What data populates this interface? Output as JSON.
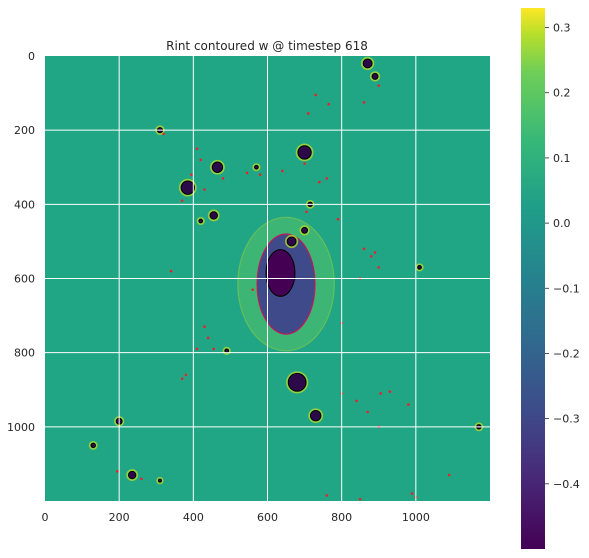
{
  "chart_data": {
    "type": "heatmap",
    "title": "Rint contoured w @ timestep 618",
    "xlabel": "",
    "ylabel": "",
    "xlim": [
      0,
      1200
    ],
    "ylim": [
      1200,
      0
    ],
    "x_ticks": [
      0,
      200,
      400,
      600,
      800,
      1000
    ],
    "x_tick_labels": [
      "0",
      "200",
      "400",
      "600",
      "800",
      "1000"
    ],
    "y_ticks": [
      0,
      200,
      400,
      600,
      800,
      1000
    ],
    "y_tick_labels": [
      "0",
      "200",
      "400",
      "600",
      "800",
      "1000"
    ],
    "grid": true,
    "colormap": "viridis",
    "background_color": "#21a685",
    "colorbar": {
      "range": [
        -0.5,
        0.33
      ],
      "ticks": [
        0.3,
        0.2,
        0.1,
        0.0,
        -0.1,
        -0.2,
        -0.3,
        -0.4
      ],
      "tick_labels": [
        "0.3",
        "0.2",
        "0.1",
        "0.0",
        "−0.1",
        "−0.2",
        "−0.3",
        "−0.4"
      ]
    },
    "blobs": [
      {
        "x": 870,
        "y": 20,
        "r": 12
      },
      {
        "x": 890,
        "y": 55,
        "r": 8
      },
      {
        "x": 310,
        "y": 200,
        "r": 7
      },
      {
        "x": 385,
        "y": 355,
        "r": 18
      },
      {
        "x": 465,
        "y": 300,
        "r": 14
      },
      {
        "x": 455,
        "y": 430,
        "r": 10
      },
      {
        "x": 420,
        "y": 445,
        "r": 5
      },
      {
        "x": 570,
        "y": 300,
        "r": 5
      },
      {
        "x": 700,
        "y": 260,
        "r": 18
      },
      {
        "x": 700,
        "y": 470,
        "r": 8
      },
      {
        "x": 665,
        "y": 500,
        "r": 12
      },
      {
        "x": 715,
        "y": 400,
        "r": 6
      },
      {
        "x": 490,
        "y": 795,
        "r": 5
      },
      {
        "x": 680,
        "y": 880,
        "r": 24
      },
      {
        "x": 730,
        "y": 970,
        "r": 14
      },
      {
        "x": 200,
        "y": 985,
        "r": 8
      },
      {
        "x": 130,
        "y": 1050,
        "r": 6
      },
      {
        "x": 235,
        "y": 1130,
        "r": 10
      },
      {
        "x": 1010,
        "y": 570,
        "r": 5
      },
      {
        "x": 1170,
        "y": 1000,
        "r": 6
      },
      {
        "x": 310,
        "y": 1145,
        "r": 4
      }
    ],
    "central_cluster": {
      "x": 650,
      "y": 615,
      "rx": 130,
      "ry": 180
    },
    "red_points": [
      [
        320,
        210
      ],
      [
        410,
        250
      ],
      [
        420,
        280
      ],
      [
        395,
        320
      ],
      [
        370,
        390
      ],
      [
        430,
        360
      ],
      [
        480,
        330
      ],
      [
        545,
        315
      ],
      [
        580,
        320
      ],
      [
        700,
        290
      ],
      [
        740,
        340
      ],
      [
        760,
        330
      ],
      [
        705,
        420
      ],
      [
        790,
        440
      ],
      [
        860,
        520
      ],
      [
        880,
        540
      ],
      [
        900,
        570
      ],
      [
        890,
        530
      ],
      [
        850,
        600
      ],
      [
        730,
        105
      ],
      [
        765,
        130
      ],
      [
        860,
        125
      ],
      [
        900,
        80
      ],
      [
        430,
        730
      ],
      [
        440,
        760
      ],
      [
        455,
        790
      ],
      [
        410,
        790
      ],
      [
        370,
        870
      ],
      [
        380,
        860
      ],
      [
        340,
        580
      ],
      [
        800,
        910
      ],
      [
        840,
        930
      ],
      [
        870,
        960
      ],
      [
        900,
        1000
      ],
      [
        930,
        905
      ],
      [
        905,
        910
      ],
      [
        990,
        1180
      ],
      [
        1000,
        1190
      ],
      [
        1090,
        1130
      ],
      [
        760,
        1185
      ],
      [
        850,
        1195
      ],
      [
        980,
        940
      ],
      [
        260,
        1140
      ],
      [
        195,
        1120
      ],
      [
        710,
        155
      ],
      [
        640,
        310
      ],
      [
        560,
        630
      ],
      [
        800,
        720
      ]
    ]
  }
}
